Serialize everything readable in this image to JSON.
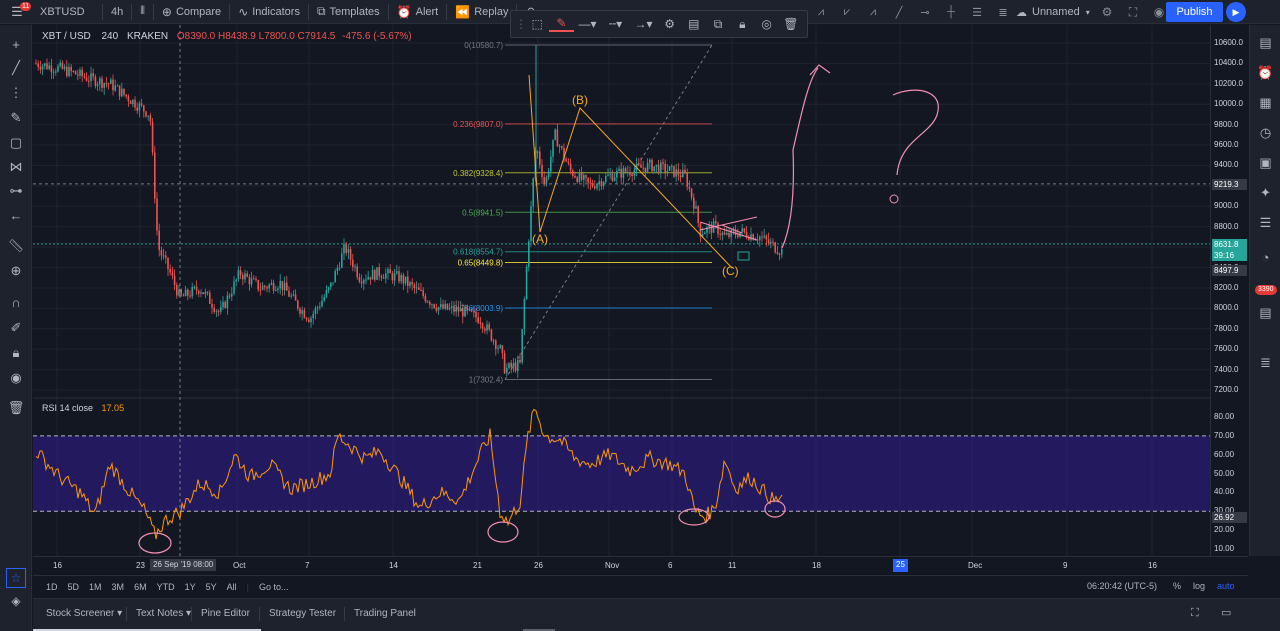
{
  "toolbar": {
    "notifications": "11",
    "symbol": "XBTUSD",
    "interval": "4h",
    "compare": "Compare",
    "indicators": "Indicators",
    "templates": "Templates",
    "alert": "Alert",
    "replay": "Replay",
    "layout_name": "Unnamed",
    "publish": "Publish"
  },
  "legend": {
    "symbol": "XBT / USD",
    "interval": "240",
    "exchange": "KRAKEN",
    "ohlc": "O8390.0  H8438.9  L7800.0  C7914.5",
    "change": "-475.6 (-5.67%)"
  },
  "rsi_legend": {
    "label": "RSI  14  close",
    "value": "17.05"
  },
  "price_axis": {
    "ticks": [
      "10600.0",
      "10400.0",
      "10200.0",
      "10000.0",
      "9800.0",
      "9600.0",
      "9400.0",
      "9200.0",
      "9000.0",
      "8800.0",
      "8600.0",
      "8400.0",
      "8200.0",
      "8000.0",
      "7800.0",
      "7600.0",
      "7400.0",
      "7200.0"
    ],
    "rsi_ticks": [
      "80.00",
      "70.00",
      "60.00",
      "50.00",
      "40.00",
      "30.00",
      "20.00",
      "10.00"
    ],
    "label_crosshair": "9219.3",
    "label_last": "8631.8",
    "label_countdown": "39:16",
    "label_low": "8497.9",
    "label_rsi": "26.92"
  },
  "fib": [
    {
      "text": "0(10580.7)",
      "color": "#787b86"
    },
    {
      "text": "0.236(9807.0)",
      "color": "#ef5350"
    },
    {
      "text": "0.382(9328.4)",
      "color": "#c0ca33"
    },
    {
      "text": "0.5(8941.5)",
      "color": "#4caf50"
    },
    {
      "text": "0.618(8554.7)",
      "color": "#26a69a"
    },
    {
      "text": "0.65(8449.8)",
      "color": "#ffeb3b"
    },
    {
      "text": "0.786(8003.9)",
      "color": "#2196f3"
    },
    {
      "text": "1(7302.4)",
      "color": "#787b86"
    }
  ],
  "wave_labels": {
    "a": "(A)",
    "b": "(B)",
    "c": "(C)"
  },
  "time_axis": {
    "ticks": [
      "16",
      "23",
      "Oct",
      "7",
      "14",
      "21",
      "26",
      "Nov",
      "6",
      "11",
      "18",
      "25",
      "Dec",
      "9",
      "16"
    ],
    "cursor": "26 Sep '19    08:00",
    "highlight": "25"
  },
  "range_bar": {
    "ranges": [
      "1D",
      "5D",
      "1M",
      "3M",
      "6M",
      "YTD",
      "1Y",
      "5Y",
      "All"
    ],
    "goto": "Go to...",
    "clock": "06:20:42 (UTC-5)",
    "percent": "%",
    "log": "log",
    "auto": "auto"
  },
  "bottom_tabs": [
    "Stock Screener",
    "Text Notes",
    "Pine Editor",
    "Strategy Tester",
    "Trading Panel"
  ],
  "right_badge": "3390",
  "icons": {
    "left": [
      "crosshair-icon",
      "trend-line-icon",
      "fib-icon",
      "brush-icon",
      "text-icon",
      "pattern-icon",
      "prediction-icon",
      "arrow-left-icon",
      "ruler-icon",
      "zoom-icon",
      "magnet-icon",
      "lock-drawing-icon",
      "lock-icon",
      "eye-icon",
      "trash-icon"
    ],
    "right": [
      "watchlist-icon",
      "alerts-icon",
      "data-window-icon",
      "hotlist-icon",
      "calendar-icon",
      "ideas-icon",
      "chat-icon",
      "notifications-icon",
      "order-panel-icon",
      "dom-icon"
    ]
  },
  "colors": {
    "background": "#131722",
    "panel": "#1e222d",
    "accent": "#2962ff",
    "candle_up": "#26a69a",
    "candle_down": "#ef5350",
    "rsi_line": "#ff9800",
    "rsi_band": "#311b92",
    "drawing": "#f48fb1",
    "wave_label": "#f9a825"
  }
}
